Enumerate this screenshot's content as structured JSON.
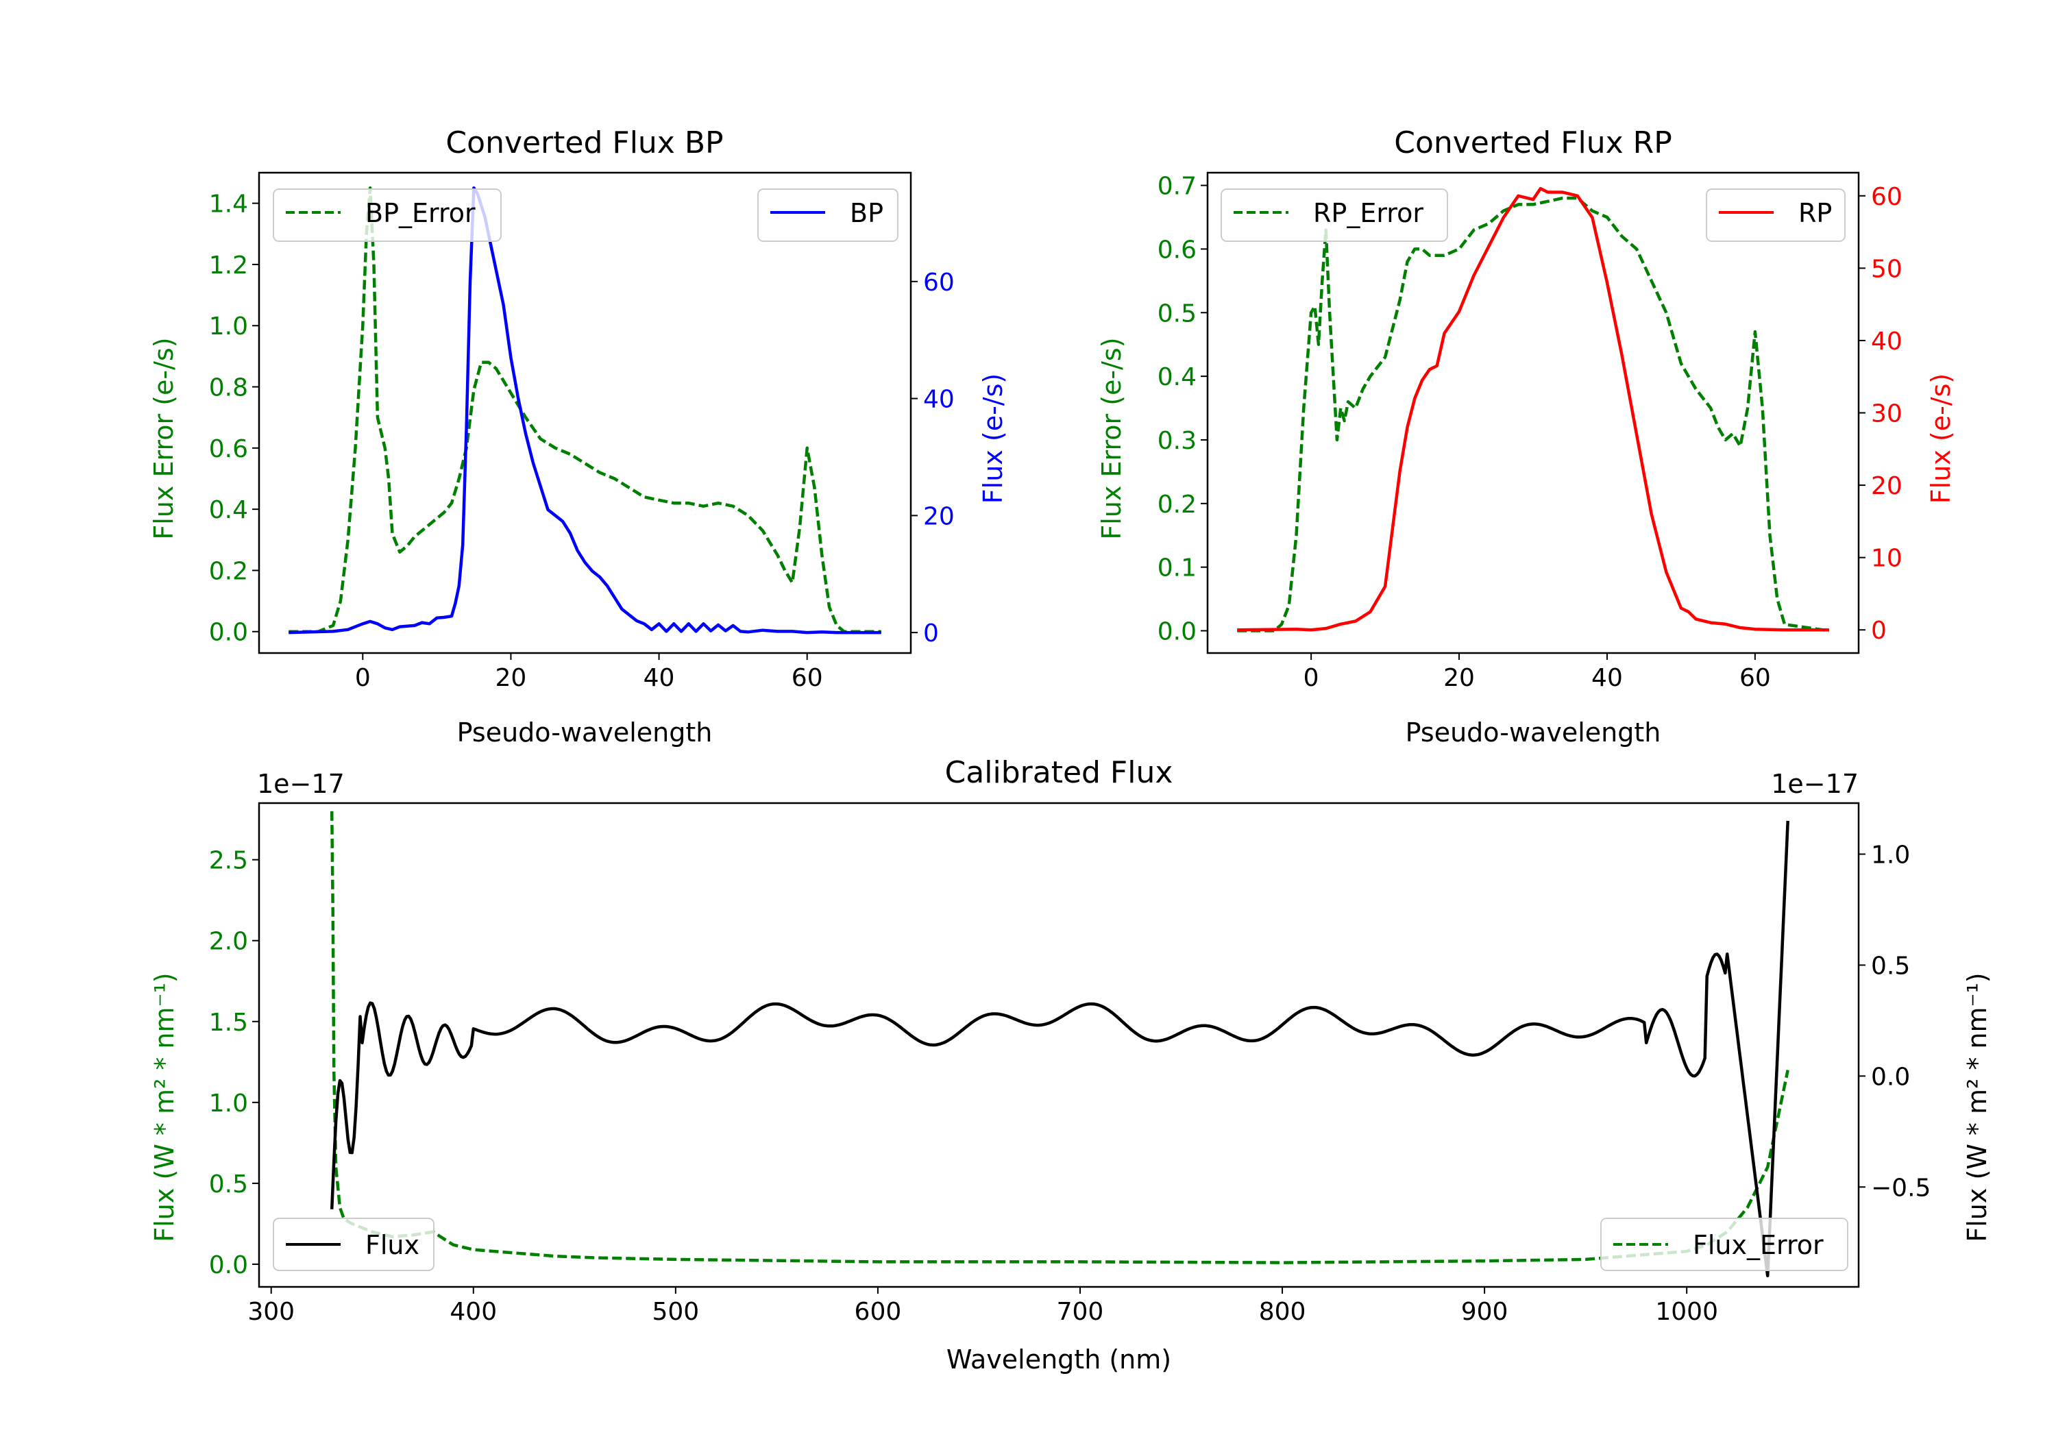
{
  "colors": {
    "green": "#008000",
    "blue": "#0000ff",
    "red": "#ff0000",
    "black": "#000000",
    "legend_border": "#cccccc"
  },
  "chart_data": [
    {
      "type": "line",
      "title": "Converted Flux BP",
      "xlabel": "Pseudo-wavelength",
      "ylabel_left": "Flux Error (e-/s)",
      "ylabel_right": "Flux (e-/s)",
      "xlim": [
        -14,
        74
      ],
      "ylim_left": [
        -0.07,
        1.5
      ],
      "ylim_right": [
        -3.5,
        78.6
      ],
      "xticks": [
        0,
        20,
        40,
        60
      ],
      "yticks_left": [
        0.0,
        0.2,
        0.4,
        0.6,
        0.8,
        1.0,
        1.2,
        1.4
      ],
      "yticks_right": [
        0,
        20,
        40,
        60
      ],
      "legend_left": {
        "label": "BP_Error",
        "placement": "upper left"
      },
      "legend_right": {
        "label": "BP",
        "placement": "upper right"
      },
      "series": [
        {
          "name": "BP_Error",
          "axis": "left",
          "color": "#008000",
          "dashed": true,
          "x": [
            -10,
            -6,
            -4,
            -3,
            -2,
            -1,
            0,
            0.5,
            1,
            1.5,
            2,
            3,
            3.5,
            4,
            5,
            6,
            7,
            8,
            9,
            10,
            11,
            12,
            13,
            14,
            15,
            16,
            17,
            18,
            19,
            20,
            21,
            22,
            24,
            26,
            28,
            30,
            32,
            34,
            36,
            38,
            40,
            42,
            44,
            46,
            48,
            50,
            52,
            54,
            55,
            56,
            57,
            58,
            59,
            60,
            61,
            62,
            63,
            64,
            65,
            70
          ],
          "y": [
            0.0,
            0.0,
            0.02,
            0.1,
            0.3,
            0.6,
            1.0,
            1.3,
            1.45,
            1.2,
            0.7,
            0.6,
            0.5,
            0.32,
            0.26,
            0.28,
            0.31,
            0.33,
            0.35,
            0.37,
            0.39,
            0.42,
            0.5,
            0.6,
            0.79,
            0.88,
            0.88,
            0.86,
            0.82,
            0.78,
            0.74,
            0.7,
            0.63,
            0.6,
            0.58,
            0.55,
            0.52,
            0.5,
            0.47,
            0.44,
            0.43,
            0.42,
            0.42,
            0.41,
            0.42,
            0.41,
            0.38,
            0.33,
            0.29,
            0.25,
            0.2,
            0.16,
            0.34,
            0.6,
            0.47,
            0.25,
            0.08,
            0.02,
            0.0,
            0.0
          ]
        },
        {
          "name": "BP",
          "axis": "right",
          "color": "#0000ff",
          "dashed": false,
          "x": [
            -10,
            -4,
            -2,
            0,
            1,
            2,
            3,
            4,
            5,
            6,
            7,
            8,
            9,
            10,
            11,
            12,
            12.5,
            13,
            13.5,
            14,
            14.5,
            15,
            15.5,
            16,
            16.5,
            17,
            17.5,
            18,
            19,
            20,
            21,
            22,
            23,
            24,
            25,
            26,
            27,
            28,
            29,
            30,
            31,
            32,
            33,
            34,
            35,
            36,
            37,
            38,
            39,
            40,
            41,
            42,
            43,
            44,
            45,
            46,
            47,
            48,
            49,
            50,
            51,
            52,
            54,
            56,
            58,
            60,
            62,
            64,
            66,
            70
          ],
          "y": [
            0,
            0.2,
            0.5,
            1.5,
            1.9,
            1.5,
            0.8,
            0.5,
            1.0,
            1.1,
            1.2,
            1.7,
            1.5,
            2.5,
            2.6,
            2.8,
            5,
            8,
            15,
            35,
            60,
            76,
            75,
            73,
            71,
            68,
            65,
            62,
            56,
            47,
            40,
            34,
            29,
            25,
            21,
            20,
            19,
            17,
            14,
            12,
            10.5,
            9.5,
            8,
            6,
            4,
            3,
            2,
            1.5,
            0.5,
            1.5,
            0.2,
            1.5,
            0.2,
            1.5,
            0.2,
            1.5,
            0.3,
            1.3,
            0.3,
            1.2,
            0.2,
            0.1,
            0.4,
            0.2,
            0.2,
            0.0,
            0.1,
            0.0,
            0.0,
            0.0
          ]
        }
      ]
    },
    {
      "type": "line",
      "title": "Converted Flux RP",
      "xlabel": "Pseudo-wavelength",
      "ylabel_left": "Flux Error (e-/s)",
      "ylabel_right": "Flux (e-/s)",
      "xlim": [
        -14,
        74
      ],
      "ylim_left": [
        -0.035,
        0.72
      ],
      "ylim_right": [
        -3.2,
        63.2
      ],
      "xticks": [
        0,
        20,
        40,
        60
      ],
      "yticks_left": [
        0.0,
        0.1,
        0.2,
        0.3,
        0.4,
        0.5,
        0.6,
        0.7
      ],
      "yticks_right": [
        0,
        10,
        20,
        30,
        40,
        50,
        60
      ],
      "legend_left": {
        "label": "RP_Error",
        "placement": "upper left"
      },
      "legend_right": {
        "label": "RP",
        "placement": "upper right"
      },
      "series": [
        {
          "name": "RP_Error",
          "axis": "left",
          "color": "#008000",
          "dashed": true,
          "x": [
            -10,
            -5,
            -4,
            -3,
            -2,
            -1,
            0,
            0.5,
            1,
            1.5,
            2,
            2.5,
            3,
            3.5,
            4,
            4.5,
            5,
            6,
            7,
            8,
            10,
            12,
            13,
            14,
            15,
            16,
            18,
            20,
            22,
            24,
            26,
            28,
            30,
            32,
            34,
            36,
            38,
            40,
            42,
            44,
            46,
            48,
            50,
            52,
            54,
            55,
            56,
            57,
            58,
            59,
            60,
            61,
            62,
            63,
            64,
            70
          ],
          "y": [
            0.0,
            0.0,
            0.01,
            0.04,
            0.15,
            0.35,
            0.5,
            0.51,
            0.45,
            0.55,
            0.63,
            0.5,
            0.4,
            0.3,
            0.35,
            0.33,
            0.36,
            0.35,
            0.38,
            0.4,
            0.43,
            0.52,
            0.58,
            0.6,
            0.6,
            0.59,
            0.59,
            0.6,
            0.63,
            0.64,
            0.66,
            0.67,
            0.67,
            0.675,
            0.68,
            0.68,
            0.66,
            0.65,
            0.62,
            0.6,
            0.55,
            0.5,
            0.42,
            0.38,
            0.35,
            0.32,
            0.3,
            0.31,
            0.29,
            0.35,
            0.47,
            0.35,
            0.15,
            0.05,
            0.01,
            0.0
          ]
        },
        {
          "name": "RP",
          "axis": "right",
          "color": "#ff0000",
          "dashed": false,
          "x": [
            -10,
            -2,
            0,
            2,
            4,
            6,
            8,
            10,
            11,
            12,
            13,
            14,
            15,
            16,
            17,
            18,
            19,
            20,
            22,
            24,
            26,
            28,
            30,
            31,
            32,
            34,
            36,
            38,
            40,
            42,
            44,
            46,
            48,
            50,
            51,
            52,
            54,
            56,
            58,
            60,
            64,
            70
          ],
          "y": [
            0,
            0.1,
            0.0,
            0.2,
            0.8,
            1.2,
            2.5,
            6,
            14,
            22,
            28,
            32,
            34.5,
            36,
            36.5,
            41,
            42.5,
            44,
            49,
            53,
            57,
            60,
            59.5,
            61,
            60.5,
            60.5,
            60,
            57,
            48,
            38,
            27,
            16,
            8,
            3,
            2.5,
            1.5,
            1.0,
            0.8,
            0.3,
            0.1,
            0.0,
            0.0
          ]
        }
      ]
    },
    {
      "type": "line",
      "title": "Calibrated Flux",
      "xlabel": "Wavelength (nm)",
      "ylabel_left": "Flux (W * m² * nm⁻¹)",
      "ylabel_right": "Flux (W * m² * nm⁻¹)",
      "offset_left": "1e−17",
      "offset_right": "1e−17",
      "xlim": [
        294,
        1085
      ],
      "ylim_left": [
        -0.14,
        2.85
      ],
      "ylim_right": [
        -0.95,
        1.23
      ],
      "xticks": [
        300,
        400,
        500,
        600,
        700,
        800,
        900,
        1000
      ],
      "yticks_left": [
        0.0,
        0.5,
        1.0,
        1.5,
        2.0,
        2.5
      ],
      "yticks_right": [
        -0.5,
        0.0,
        0.5,
        1.0
      ],
      "legend_left": {
        "label": "Flux",
        "placement": "lower left"
      },
      "legend_right": {
        "label": "Flux_Error",
        "placement": "lower right"
      },
      "series": [
        {
          "name": "Flux_Error",
          "axis": "left",
          "color": "#008000",
          "dashed": true,
          "x": [
            330,
            330.5,
            331,
            332,
            334,
            336,
            340,
            350,
            360,
            370,
            380,
            385,
            390,
            400,
            420,
            440,
            460,
            500,
            600,
            700,
            800,
            900,
            950,
            970,
            1000,
            1010,
            1020,
            1030,
            1040,
            1050
          ],
          "y": [
            2.8,
            2.2,
            1.2,
            0.6,
            0.35,
            0.28,
            0.25,
            0.2,
            0.17,
            0.18,
            0.2,
            0.16,
            0.12,
            0.09,
            0.07,
            0.05,
            0.04,
            0.03,
            0.015,
            0.015,
            0.01,
            0.02,
            0.03,
            0.05,
            0.08,
            0.12,
            0.2,
            0.35,
            0.6,
            1.2
          ]
        }
      ]
    }
  ]
}
